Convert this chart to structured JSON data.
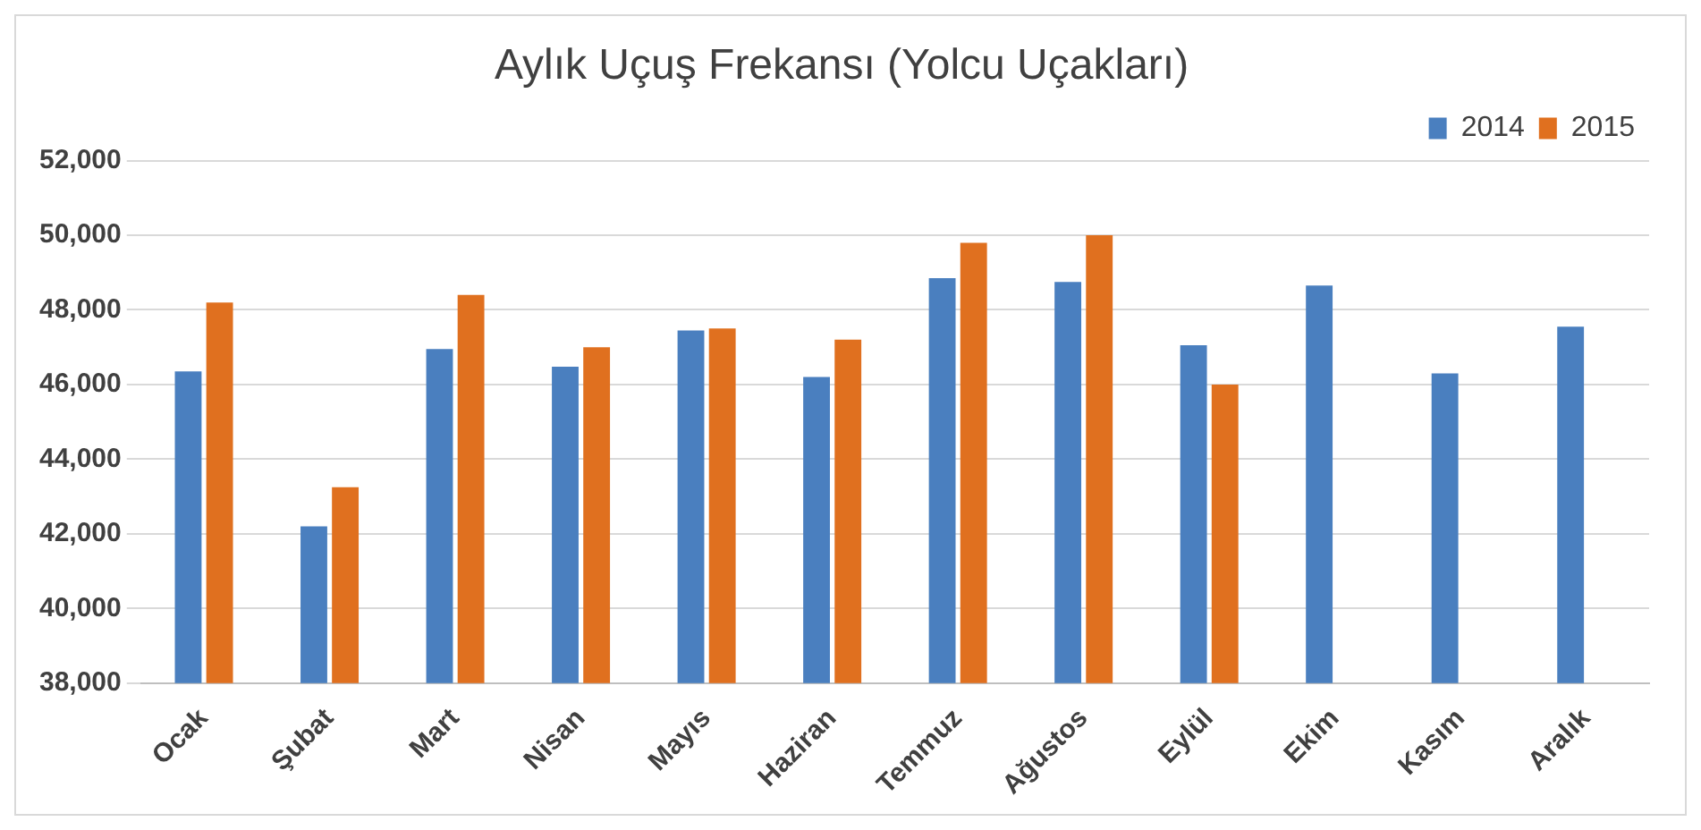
{
  "chart_data": {
    "type": "bar",
    "title": "Aylık Uçuş Frekansı (Yolcu Uçakları)",
    "categories": [
      "Ocak",
      "Şubat",
      "Mart",
      "Nisan",
      "Mayıs",
      "Haziran",
      "Temmuz",
      "Ağustos",
      "Eylül",
      "Ekim",
      "Kasım",
      "Aralık"
    ],
    "series": [
      {
        "name": "2014",
        "color": "#4a7fbf",
        "values": [
          46350,
          42200,
          46950,
          46480,
          47450,
          46200,
          48850,
          48750,
          47050,
          48650,
          46300,
          47550
        ]
      },
      {
        "name": "2015",
        "color": "#e0701f",
        "values": [
          48200,
          43250,
          48400,
          47000,
          47500,
          47200,
          49800,
          50000,
          46000,
          null,
          null,
          null
        ]
      }
    ],
    "ylim": [
      38000,
      52000
    ],
    "yticks": [
      {
        "value": 38000,
        "label": "38,000"
      },
      {
        "value": 40000,
        "label": "40,000"
      },
      {
        "value": 42000,
        "label": "42,000"
      },
      {
        "value": 44000,
        "label": "44,000"
      },
      {
        "value": 46000,
        "label": "46,000"
      },
      {
        "value": 48000,
        "label": "48,000"
      },
      {
        "value": 50000,
        "label": "50,000"
      },
      {
        "value": 52000,
        "label": "52,000"
      }
    ],
    "grid": "y",
    "legend": "top right"
  }
}
